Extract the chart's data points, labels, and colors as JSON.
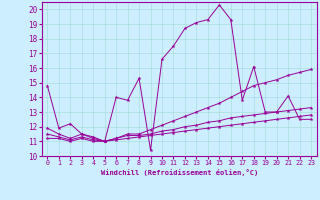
{
  "xlabel": "Windchill (Refroidissement éolien,°C)",
  "background_color": "#cceeff",
  "grid_color": "#aadddd",
  "line_color": "#990099",
  "xlim": [
    -0.5,
    23.5
  ],
  "ylim": [
    10,
    20.5
  ],
  "yticks": [
    10,
    11,
    12,
    13,
    14,
    15,
    16,
    17,
    18,
    19,
    20
  ],
  "xticks": [
    0,
    1,
    2,
    3,
    4,
    5,
    6,
    7,
    8,
    9,
    10,
    11,
    12,
    13,
    14,
    15,
    16,
    17,
    18,
    19,
    20,
    21,
    22,
    23
  ],
  "series": [
    {
      "x": [
        0,
        1,
        2,
        3,
        4,
        5,
        6,
        7,
        8,
        9,
        10,
        11,
        12,
        13,
        14,
        15,
        16,
        17,
        18,
        19,
        20,
        21,
        22,
        23
      ],
      "y": [
        14.8,
        11.9,
        12.2,
        11.5,
        11.2,
        11.0,
        14.0,
        13.8,
        15.3,
        10.4,
        16.6,
        17.5,
        18.7,
        19.1,
        19.3,
        20.3,
        19.3,
        13.8,
        16.1,
        13.0,
        13.0,
        14.1,
        12.5,
        12.5
      ]
    },
    {
      "x": [
        0,
        1,
        2,
        3,
        4,
        5,
        6,
        7,
        8,
        9,
        10,
        11,
        12,
        13,
        14,
        15,
        16,
        17,
        18,
        19,
        20,
        21,
        22,
        23
      ],
      "y": [
        11.9,
        11.5,
        11.2,
        11.5,
        11.3,
        11.0,
        11.2,
        11.5,
        11.5,
        11.8,
        12.1,
        12.4,
        12.7,
        13.0,
        13.3,
        13.6,
        14.0,
        14.4,
        14.8,
        15.0,
        15.2,
        15.5,
        15.7,
        15.9
      ]
    },
    {
      "x": [
        0,
        1,
        2,
        3,
        4,
        5,
        6,
        7,
        8,
        9,
        10,
        11,
        12,
        13,
        14,
        15,
        16,
        17,
        18,
        19,
        20,
        21,
        22,
        23
      ],
      "y": [
        11.5,
        11.3,
        11.1,
        11.3,
        11.1,
        11.0,
        11.2,
        11.4,
        11.4,
        11.5,
        11.7,
        11.8,
        12.0,
        12.1,
        12.3,
        12.4,
        12.6,
        12.7,
        12.8,
        12.9,
        13.0,
        13.1,
        13.2,
        13.3
      ]
    },
    {
      "x": [
        0,
        1,
        2,
        3,
        4,
        5,
        6,
        7,
        8,
        9,
        10,
        11,
        12,
        13,
        14,
        15,
        16,
        17,
        18,
        19,
        20,
        21,
        22,
        23
      ],
      "y": [
        11.2,
        11.2,
        11.0,
        11.2,
        11.0,
        11.0,
        11.1,
        11.2,
        11.3,
        11.4,
        11.5,
        11.6,
        11.7,
        11.8,
        11.9,
        12.0,
        12.1,
        12.2,
        12.3,
        12.4,
        12.5,
        12.6,
        12.7,
        12.8
      ]
    }
  ]
}
